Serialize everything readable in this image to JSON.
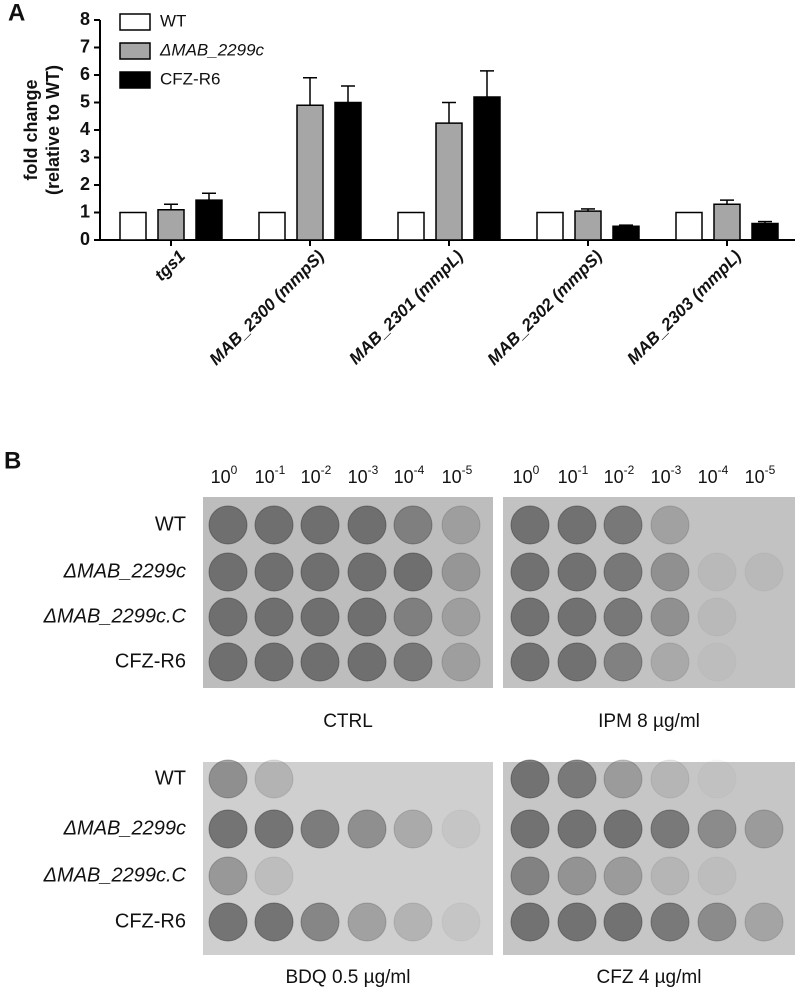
{
  "chart_data": {
    "type": "bar",
    "panel_label": "A",
    "y_label": [
      "fold change",
      "(relative to WT)"
    ],
    "categories": [
      "tgs1",
      "MAB_2300 (mmpS)",
      "MAB_2301 (mmpL)",
      "MAB_2302 (mmpS)",
      "MAB_2303 (mmpL)"
    ],
    "series": [
      {
        "name": "WT",
        "color": "#ffffff",
        "values": [
          1,
          1,
          1,
          1,
          1
        ],
        "errors": [
          0,
          0,
          0,
          0,
          0
        ]
      },
      {
        "name": "ΔMAB_2299c",
        "color": "#a6a6a6",
        "values": [
          1.1,
          4.9,
          4.25,
          1.05,
          1.3
        ],
        "errors": [
          0.2,
          1.0,
          0.75,
          0.08,
          0.15
        ]
      },
      {
        "name": "CFZ-R6",
        "color": "#000000",
        "values": [
          1.45,
          5.0,
          5.2,
          0.5,
          0.6
        ],
        "errors": [
          0.25,
          0.6,
          0.95,
          0.04,
          0.07
        ]
      }
    ],
    "ylim": [
      0,
      8
    ],
    "yticks": [
      0,
      1,
      2,
      3,
      4,
      5,
      6,
      7,
      8
    ]
  },
  "panel_b": {
    "panel_label": "B",
    "dilution_base": "10",
    "dilution_exponents": [
      "0",
      "-1",
      "-2",
      "-3",
      "-4",
      "-5"
    ],
    "strains": [
      "WT",
      "ΔMAB_2299c",
      "ΔMAB_2299c.C",
      "CFZ-R6"
    ],
    "conditions": [
      "CTRL",
      "IPM 8 µg/ml",
      "BDQ 0.5 µg/ml",
      "CFZ 4 µg/ml"
    ]
  }
}
